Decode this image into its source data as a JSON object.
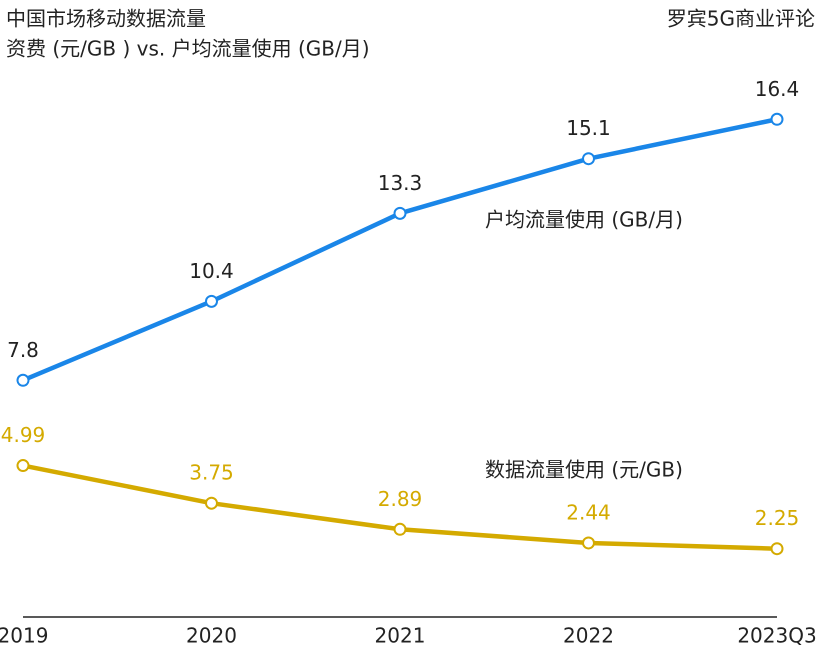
{
  "chart_data": {
    "type": "line",
    "title": [
      "中国市场移动数据流量",
      "资费 (元/GB ) vs. 户均流量使用 (GB/月)"
    ],
    "source": "罗宾5G商业评论",
    "categories": [
      "2019",
      "2020",
      "2021",
      "2022",
      "2023Q3"
    ],
    "ylim": [
      0,
      20
    ],
    "series": [
      {
        "name": "户均流量使用 (GB/月)",
        "color": "#1a86e8",
        "values": [
          7.8,
          10.4,
          13.3,
          15.1,
          16.4
        ]
      },
      {
        "name": "数据流量使用 (元/GB)",
        "color": "#d4aa00",
        "values": [
          4.99,
          3.75,
          2.89,
          2.44,
          2.25
        ]
      }
    ]
  }
}
